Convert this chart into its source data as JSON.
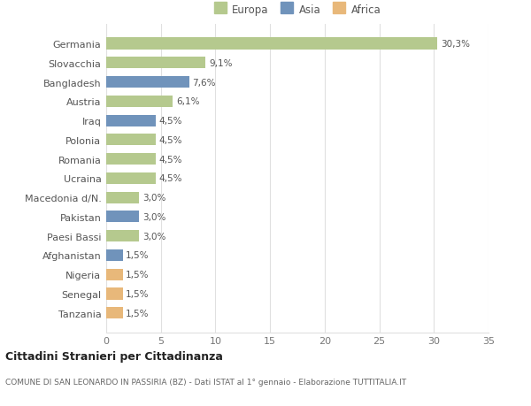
{
  "categories": [
    "Germania",
    "Slovacchia",
    "Bangladesh",
    "Austria",
    "Iraq",
    "Polonia",
    "Romania",
    "Ucraina",
    "Macedonia d/N.",
    "Pakistan",
    "Paesi Bassi",
    "Afghanistan",
    "Nigeria",
    "Senegal",
    "Tanzania"
  ],
  "values": [
    30.3,
    9.1,
    7.6,
    6.1,
    4.5,
    4.5,
    4.5,
    4.5,
    3.0,
    3.0,
    3.0,
    1.5,
    1.5,
    1.5,
    1.5
  ],
  "labels": [
    "30,3%",
    "9,1%",
    "7,6%",
    "6,1%",
    "4,5%",
    "4,5%",
    "4,5%",
    "4,5%",
    "3,0%",
    "3,0%",
    "3,0%",
    "1,5%",
    "1,5%",
    "1,5%",
    "1,5%"
  ],
  "continent": [
    "Europa",
    "Europa",
    "Asia",
    "Europa",
    "Asia",
    "Europa",
    "Europa",
    "Europa",
    "Europa",
    "Asia",
    "Europa",
    "Asia",
    "Africa",
    "Africa",
    "Africa"
  ],
  "colors": {
    "Europa": "#b5c98e",
    "Asia": "#7093bb",
    "Africa": "#e8b87a"
  },
  "legend": [
    "Europa",
    "Asia",
    "Africa"
  ],
  "legend_colors": [
    "#b5c98e",
    "#7093bb",
    "#e8b87a"
  ],
  "title": "Cittadini Stranieri per Cittadinanza",
  "subtitle": "COMUNE DI SAN LEONARDO IN PASSIRIA (BZ) - Dati ISTAT al 1° gennaio - Elaborazione TUTTITALIA.IT",
  "xlim": [
    0,
    35
  ],
  "xticks": [
    0,
    5,
    10,
    15,
    20,
    25,
    30,
    35
  ],
  "background_color": "#ffffff",
  "grid_color": "#e0e0e0"
}
